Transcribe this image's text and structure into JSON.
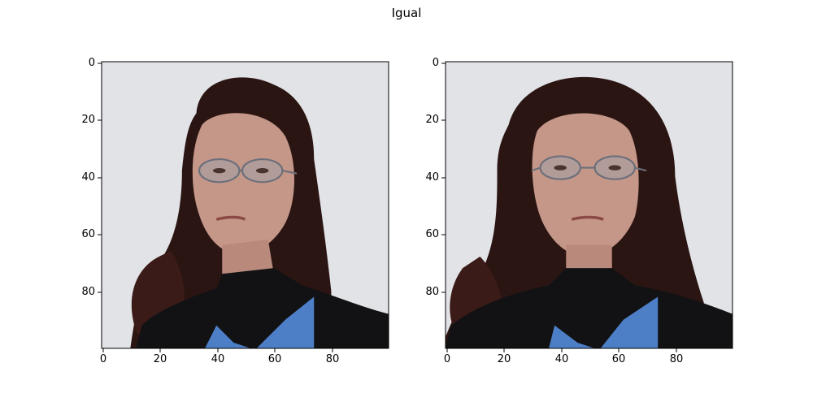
{
  "figure": {
    "title": "Igual"
  },
  "axes": {
    "x_ticks": [
      "0",
      "20",
      "40",
      "60",
      "80"
    ],
    "y_ticks": [
      "0",
      "20",
      "40",
      "60",
      "80"
    ],
    "xlim": [
      -0.5,
      99.5
    ],
    "ylim": [
      99.5,
      -0.5
    ]
  },
  "panels": [
    {
      "subject": "woman-portrait",
      "pose": "head-turned-to-viewer-right",
      "role": "original-image"
    },
    {
      "subject": "woman-portrait",
      "pose": "frontal",
      "role": "aligned-image"
    }
  ],
  "colors": {
    "background": "#e1e3e7",
    "hair": "#2b1513",
    "skin": "#c59788",
    "sweater": "#121214",
    "shirt": "#4d7fc6",
    "frame": "#000000"
  }
}
